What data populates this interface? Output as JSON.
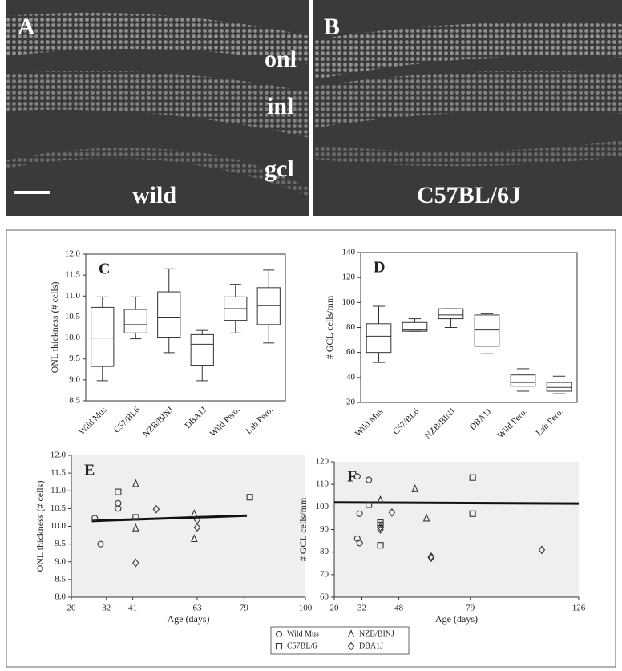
{
  "micrographs": {
    "left": {
      "letter": "A",
      "strain": "wild"
    },
    "right": {
      "letter": "B",
      "strain": "C57BL/6J"
    },
    "layers": [
      "onl",
      "inl",
      "gcl"
    ]
  },
  "chart_data": [
    {
      "type": "box",
      "title": "C",
      "ylabel": "ONL thickness (# cells)",
      "categories": [
        "Wild Mus",
        "C57/BL6",
        "NZB/BINJ",
        "DBA1J",
        "Wild Pero.",
        "Lab Pero."
      ],
      "min": [
        8.98,
        9.98,
        9.65,
        8.98,
        10.12,
        9.88
      ],
      "q1": [
        9.32,
        10.12,
        10.02,
        9.35,
        10.42,
        10.32
      ],
      "median": [
        10.0,
        10.32,
        10.48,
        9.85,
        10.7,
        10.77
      ],
      "q3": [
        10.73,
        10.68,
        11.1,
        10.08,
        10.98,
        11.2
      ],
      "max": [
        10.98,
        10.98,
        11.65,
        10.18,
        11.28,
        11.62
      ],
      "ylim": [
        8.5,
        12
      ],
      "yticks": [
        8.5,
        {
          "value": 9,
          "label": "9.0"
        },
        9.5,
        {
          "value": 10,
          "label": "10.0"
        },
        10.5,
        {
          "value": 11,
          "label": "11.0"
        },
        11.5,
        {
          "value": 12,
          "label": "12.0"
        }
      ]
    },
    {
      "type": "box",
      "title": "D",
      "ylabel": "# GCL  cells/mm",
      "categories": [
        "Wild Mus",
        "C57/BL6",
        "NZB/BINJ",
        "DBA1J",
        "Wild Pero.",
        "Lab Pero."
      ],
      "min": [
        52,
        77,
        80,
        59,
        29,
        27
      ],
      "q1": [
        60,
        77,
        87,
        65,
        33,
        29
      ],
      "median": [
        73,
        78,
        90,
        78,
        36,
        32
      ],
      "q3": [
        83,
        84,
        95,
        90,
        42,
        36
      ],
      "max": [
        97,
        87,
        95,
        91,
        47,
        41
      ],
      "ylim": [
        20,
        140
      ],
      "yticks": [
        20,
        40,
        60,
        80,
        100,
        120,
        140
      ]
    },
    {
      "type": "scatter",
      "title": "E",
      "ylabel": "ONL thickness (# cells)",
      "xlabel": "Age (days)",
      "series": [
        {
          "marker": "circle",
          "x": [
            28,
            30,
            36,
            36
          ],
          "values": [
            10.23,
            9.5,
            10.65,
            10.5
          ]
        },
        {
          "marker": "triangle",
          "x": [
            42,
            42,
            62,
            62
          ],
          "values": [
            11.2,
            9.95,
            10.35,
            9.65
          ]
        },
        {
          "marker": "square",
          "x": [
            36,
            42,
            81
          ],
          "values": [
            10.97,
            10.25,
            10.82
          ]
        },
        {
          "marker": "diamond",
          "x": [
            42,
            49,
            63,
            63
          ],
          "values": [
            8.97,
            10.48,
            10.18,
            9.97
          ]
        }
      ],
      "trend": {
        "x": [
          27,
          80
        ],
        "values": [
          10.15,
          10.3
        ]
      },
      "xlim": [
        20,
        100
      ],
      "xticks": [
        20,
        32,
        41,
        63,
        79,
        100
      ],
      "ylim": [
        8,
        12
      ],
      "yticks": [
        {
          "value": 8,
          "label": "8.0"
        },
        8.5,
        {
          "value": 9,
          "label": "9.0"
        },
        9.5,
        {
          "value": 10,
          "label": "10.0"
        },
        10.5,
        {
          "value": 11,
          "label": "11.0"
        },
        11.5,
        {
          "value": 12,
          "label": "12.0"
        }
      ]
    },
    {
      "type": "scatter",
      "title": "F",
      "ylabel": "# GCL  cells/mm",
      "xlabel": "Age (days)",
      "legend": true,
      "series": [
        {
          "name": "Wild Mus",
          "marker": "circle",
          "x": [
            30,
            30,
            31,
            31,
            35
          ],
          "values": [
            113.5,
            86,
            97,
            84,
            112
          ]
        },
        {
          "name": "NZB/BINJ",
          "marker": "triangle",
          "x": [
            40,
            55,
            60
          ],
          "values": [
            103,
            108,
            95
          ]
        },
        {
          "name": "C57BL/6",
          "marker": "square",
          "x": [
            35,
            40,
            40,
            40,
            80,
            80
          ],
          "values": [
            101,
            93,
            92,
            83,
            113,
            97
          ]
        },
        {
          "name": "DBA1J",
          "marker": "diamond",
          "x": [
            40,
            40,
            45,
            62,
            62,
            110
          ],
          "values": [
            91,
            90,
            97.5,
            78,
            77.5,
            81
          ]
        }
      ],
      "trend": {
        "x": [
          20,
          126
        ],
        "values": [
          102,
          101.5
        ]
      },
      "xlim": [
        20,
        126
      ],
      "xticks": [
        20,
        32,
        48,
        79,
        126
      ],
      "ylim": [
        60,
        120
      ],
      "yticks": [
        60,
        70,
        80,
        90,
        100,
        110,
        120
      ]
    }
  ]
}
